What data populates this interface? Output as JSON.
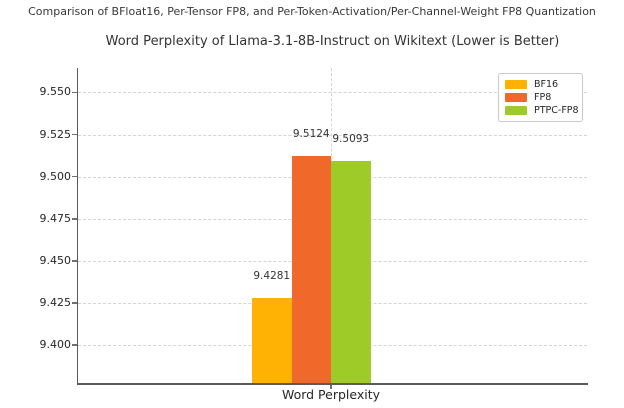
{
  "figure": {
    "suptitle": "Comparison of BFloat16, Per-Tensor FP8, and Per-Token-Activation/Per-Channel-Weight FP8 Quantization"
  },
  "chart_data": {
    "type": "bar",
    "title": "Word Perplexity of Llama-3.1-8B-Instruct on Wikitext (Lower is Better)",
    "xlabel": "Word Perplexity",
    "categories": [
      "Word Perplexity"
    ],
    "series": [
      {
        "name": "BF16",
        "values": [
          9.4281
        ],
        "data_label": "9.4281",
        "color": "#FFB104"
      },
      {
        "name": "FP8",
        "values": [
          9.5124
        ],
        "data_label": "9.5124",
        "color": "#F0692B"
      },
      {
        "name": "PTPC-FP8",
        "values": [
          9.5093
        ],
        "data_label": "9.5093",
        "color": "#9ECB28"
      }
    ],
    "yticks": [
      "9.400",
      "9.425",
      "9.450",
      "9.475",
      "9.500",
      "9.525",
      "9.550"
    ],
    "ylim": [
      9.3775,
      9.5645
    ],
    "grid": "dashed",
    "legend_position": "upper-right"
  },
  "colors": {
    "grid": "#d4d4d4",
    "spine": "#5a5a5a",
    "tick": "#707070",
    "text": "#262626"
  }
}
